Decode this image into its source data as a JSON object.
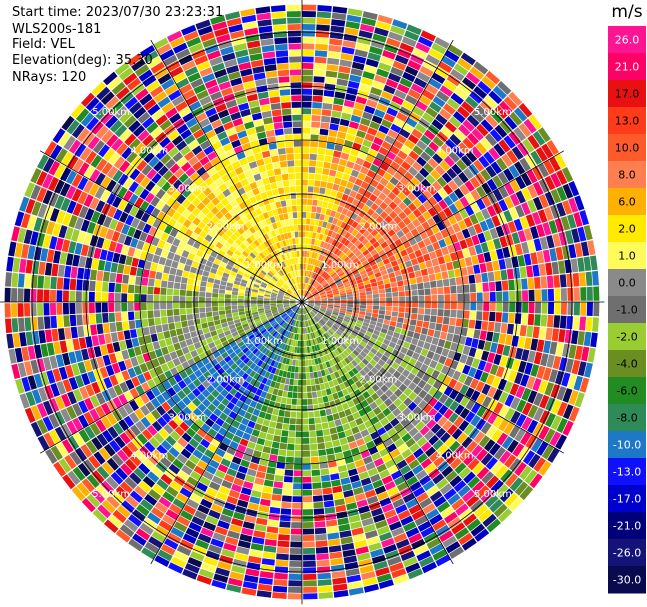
{
  "header": {
    "start_time": "Start time: 2023/07/30 23:23:31",
    "instrument": "WLS200s-181",
    "field": "Field: VEL",
    "elevation": "Elevation(deg): 35.30",
    "nrays": "NRays: 120"
  },
  "chart_data": {
    "type": "heatmap",
    "projection": "polar-ppi",
    "nrays": 120,
    "field": "VEL",
    "range_rings_km": [
      1.0,
      2.0,
      3.0,
      4.0,
      5.0
    ],
    "ring_labels": [
      "1.00km",
      "2.00km",
      "3.00km",
      "4.00km",
      "5.00km"
    ],
    "max_range_km": 5.6,
    "spokes_deg": [
      0,
      30,
      60,
      90,
      120,
      150,
      180,
      210,
      240,
      270,
      300,
      330
    ],
    "colorbar": {
      "unit": "m/s",
      "tick_labels": [
        "26.0",
        "21.0",
        "17.0",
        "13.0",
        "10.0",
        "8.0",
        "6.0",
        "2.0",
        "1.0",
        "0.0",
        "-1.0",
        "-2.0",
        "-4.0",
        "-6.0",
        "-8.0",
        "-10.0",
        "-13.0",
        "-17.0",
        "-21.0",
        "-26.0",
        "-30.0"
      ],
      "colors": [
        "#ff1493",
        "#ff0066",
        "#e81010",
        "#ff3b1a",
        "#ff5a2a",
        "#ff7f50",
        "#ffb000",
        "#ffea00",
        "#fffb5a",
        "#8a8a8a",
        "#6f6f6f",
        "#9acd32",
        "#6b8e23",
        "#228b22",
        "#2e8b57",
        "#1e78c8",
        "#1010ff",
        "#0000cd",
        "#00007a",
        "#141478",
        "#0a0a50"
      ]
    },
    "pattern": {
      "near_range_km": 2.6,
      "north_east": "warm 2 to 10 m/s",
      "north_west": "yellow 1 to 6 m/s",
      "south_west": "blue -8 to -13 m/s",
      "south": "green -2 to -6 m/s",
      "east_south_east": "grey 0 m/s",
      "far_range": "noise across full scale"
    }
  }
}
